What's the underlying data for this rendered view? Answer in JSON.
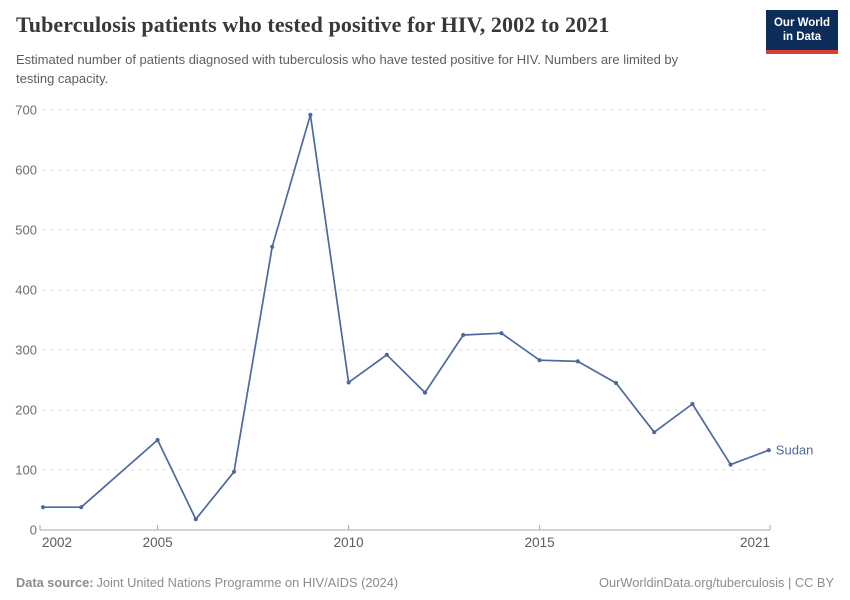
{
  "header": {
    "title": "Tuberculosis patients who tested positive for HIV, 2002 to 2021",
    "subtitle": "Estimated number of patients diagnosed with tuberculosis who have tested positive for HIV. Numbers are limited by testing capacity.",
    "logo": {
      "line1": "Our World",
      "line2": "in Data"
    }
  },
  "footer": {
    "source_label": "Data source:",
    "source_text": "Joint United Nations Programme on HIV/AIDS (2024)",
    "link_text": "OurWorldinData.org/tuberculosis | CC BY"
  },
  "colors": {
    "line": "#4C6A9C",
    "logo_background": "#0d2d59",
    "logo_stripe": "#dc3d33",
    "gridline": "#dadada",
    "axis": "#a8a8a8",
    "y_tick_label": "#6e6e6e",
    "x_tick_label": "#5c5c5c"
  },
  "chart_data": {
    "type": "line",
    "title": "Tuberculosis patients who tested positive for HIV, 2002 to 2021",
    "subtitle": "Estimated number of patients diagnosed with tuberculosis who have tested positive for HIV. Numbers are limited by testing capacity.",
    "entity": "Sudan",
    "x": [
      2002,
      2003,
      2004,
      2005,
      2006,
      2007,
      2008,
      2009,
      2010,
      2011,
      2012,
      2013,
      2014,
      2015,
      2016,
      2017,
      2018,
      2019,
      2020,
      2021
    ],
    "series": [
      {
        "name": "Sudan",
        "color": "#4C6A9C",
        "values": [
          38,
          38,
          null,
          150,
          18,
          97,
          472,
          692,
          246,
          292,
          229,
          325,
          328,
          283,
          281,
          245,
          163,
          210,
          109,
          133
        ]
      }
    ],
    "xlabel": "",
    "ylabel": "",
    "ylim": [
      0,
      700
    ],
    "yticks": [
      0,
      100,
      200,
      300,
      400,
      500,
      600,
      700
    ],
    "xticks": [
      2002,
      2005,
      2010,
      2015,
      2021
    ],
    "grid": "horizontal-dashed",
    "legend_position": "end-of-line-label",
    "missing_years": [
      2004
    ]
  }
}
